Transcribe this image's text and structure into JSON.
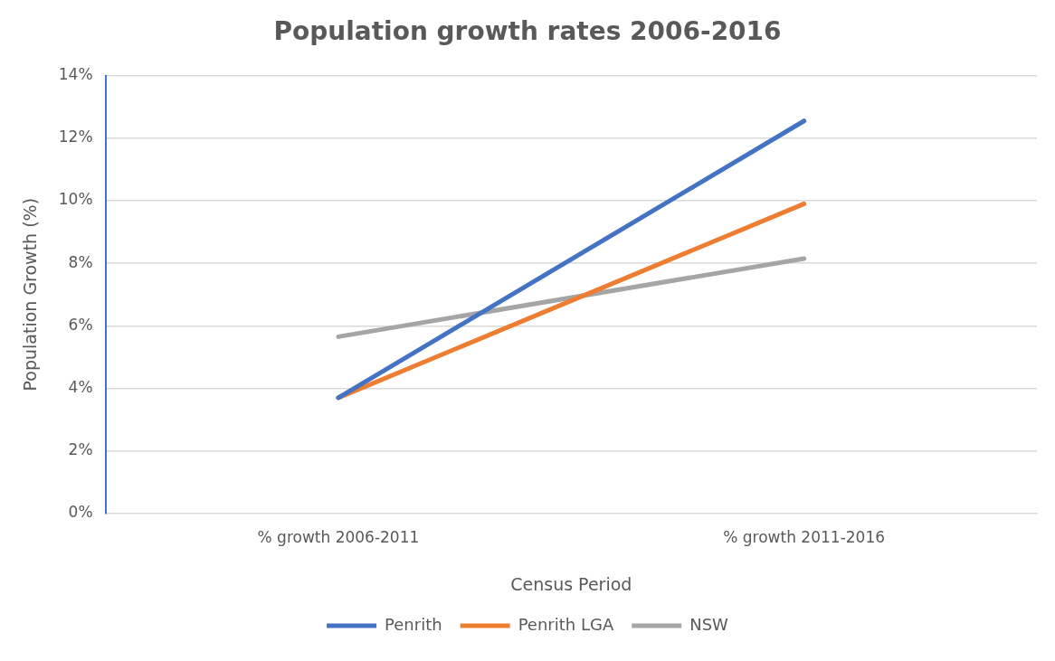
{
  "chart_data": {
    "type": "line",
    "title": "Population growth rates 2006-2016",
    "xlabel": "Census Period",
    "ylabel": "Population Growth (%)",
    "categories": [
      "% growth 2006-2011",
      "% growth 2011-2016"
    ],
    "series": [
      {
        "name": "Penrith",
        "color": "#4472c4",
        "values": [
          3.7,
          12.55
        ]
      },
      {
        "name": "Penrith LGA",
        "color": "#ed7d31",
        "values": [
          3.7,
          9.9
        ]
      },
      {
        "name": "NSW",
        "color": "#a5a5a5",
        "values": [
          5.65,
          8.15
        ]
      }
    ],
    "ylim": [
      0,
      14
    ],
    "yticks": [
      {
        "value": 0,
        "label": "0%"
      },
      {
        "value": 2,
        "label": "2%"
      },
      {
        "value": 4,
        "label": "4%"
      },
      {
        "value": 6,
        "label": "6%"
      },
      {
        "value": 8,
        "label": "8%"
      },
      {
        "value": 10,
        "label": "10%"
      },
      {
        "value": 12,
        "label": "12%"
      },
      {
        "value": 14,
        "label": "14%"
      }
    ],
    "grid": "y",
    "legend": "bottom",
    "marker": "none",
    "line_style": "solid"
  }
}
